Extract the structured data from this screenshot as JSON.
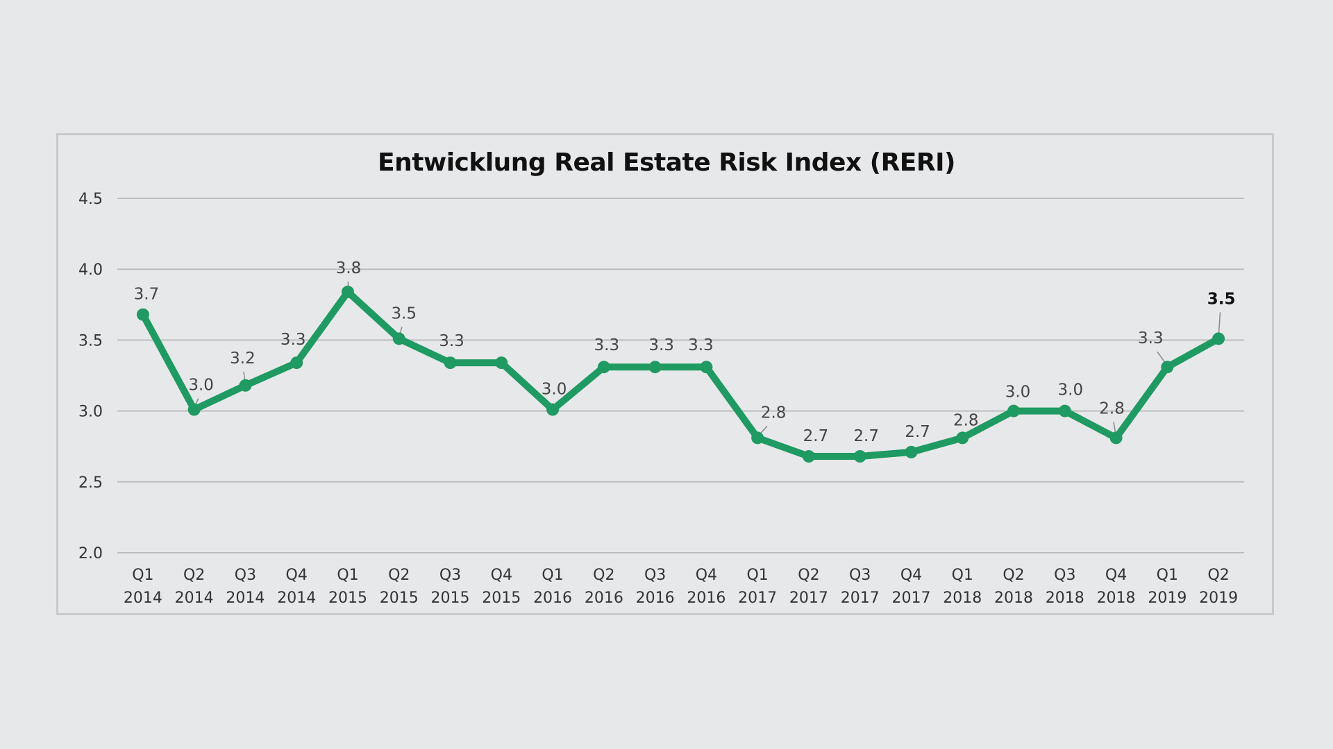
{
  "colors": {
    "background": "#e7e8ea",
    "line": "#1f9a62",
    "grid": "#bcbdbf",
    "frame": "#c9cacc"
  },
  "chart_data": {
    "type": "line",
    "title": "Entwicklung Real Estate Risk Index (RERI)",
    "xlabel": "",
    "ylabel": "",
    "ylim": [
      2.0,
      4.5
    ],
    "yticks": [
      "4.5",
      "4.0",
      "3.5",
      "3.0",
      "2.5",
      "2.0"
    ],
    "ytick_values": [
      4.5,
      4.0,
      3.5,
      3.0,
      2.5,
      2.0
    ],
    "grid": true,
    "legend": "none",
    "categories": [
      {
        "q": "Q1",
        "year": "2014"
      },
      {
        "q": "Q2",
        "year": "2014"
      },
      {
        "q": "Q3",
        "year": "2014"
      },
      {
        "q": "Q4",
        "year": "2014"
      },
      {
        "q": "Q1",
        "year": "2015"
      },
      {
        "q": "Q2",
        "year": "2015"
      },
      {
        "q": "Q3",
        "year": "2015"
      },
      {
        "q": "Q4",
        "year": "2015"
      },
      {
        "q": "Q1",
        "year": "2016"
      },
      {
        "q": "Q2",
        "year": "2016"
      },
      {
        "q": "Q3",
        "year": "2016"
      },
      {
        "q": "Q4",
        "year": "2016"
      },
      {
        "q": "Q1",
        "year": "2017"
      },
      {
        "q": "Q2",
        "year": "2017"
      },
      {
        "q": "Q3",
        "year": "2017"
      },
      {
        "q": "Q4",
        "year": "2017"
      },
      {
        "q": "Q1",
        "year": "2018"
      },
      {
        "q": "Q2",
        "year": "2018"
      },
      {
        "q": "Q3",
        "year": "2018"
      },
      {
        "q": "Q4",
        "year": "2018"
      },
      {
        "q": "Q1",
        "year": "2019"
      },
      {
        "q": "Q2",
        "year": "2019"
      }
    ],
    "series": [
      {
        "name": "RERI",
        "values": [
          3.68,
          3.01,
          3.18,
          3.34,
          3.84,
          3.51,
          3.34,
          3.34,
          3.01,
          3.31,
          3.31,
          3.31,
          2.81,
          2.68,
          2.68,
          2.71,
          2.81,
          3.0,
          3.0,
          2.81,
          3.31,
          3.51
        ],
        "data_labels": [
          "3.7",
          "3.0",
          "3.2",
          "3.3",
          "3.8",
          "3.5",
          "3.3",
          "",
          "3.0",
          "3.3",
          "3.3",
          "3.3",
          "2.8",
          "2.7",
          "2.7",
          "2.7",
          "2.8",
          "3.0",
          "3.0",
          "2.8",
          "3.3",
          "3.5"
        ],
        "highlight_last_label": true
      }
    ]
  }
}
